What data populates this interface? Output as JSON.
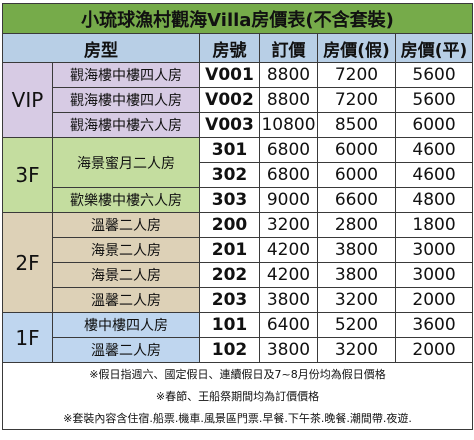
{
  "title": "小琉球漁村觀海Villa房價表(不含套裝)",
  "headers": {
    "room_type": "房型",
    "room_no": "房號",
    "list_price": "訂價",
    "holiday_price": "房價(假)",
    "weekday_price": "房價(平)"
  },
  "groups": [
    {
      "label": "VIP",
      "rows": [
        {
          "room": "觀海樓中樓四人房",
          "code": "V001",
          "list": "8800",
          "holiday": "7200",
          "weekday": "5600"
        },
        {
          "room": "觀海樓中樓四人房",
          "code": "V002",
          "list": "8800",
          "holiday": "7200",
          "weekday": "5600"
        },
        {
          "room": "觀海樓中樓六人房",
          "code": "V003",
          "list": "10800",
          "holiday": "8500",
          "weekday": "6000"
        }
      ]
    },
    {
      "label": "3F",
      "rows": [
        {
          "room": "海景蜜月二人房",
          "code": "301",
          "list": "6800",
          "holiday": "6000",
          "weekday": "4600"
        },
        {
          "room": "",
          "code": "302",
          "list": "6800",
          "holiday": "6000",
          "weekday": "4600"
        },
        {
          "room": "歡樂樓中樓六人房",
          "code": "303",
          "list": "9000",
          "holiday": "6600",
          "weekday": "4800"
        }
      ]
    },
    {
      "label": "2F",
      "rows": [
        {
          "room": "溫馨二人房",
          "code": "200",
          "list": "3200",
          "holiday": "2800",
          "weekday": "1800"
        },
        {
          "room": "海景二人房",
          "code": "201",
          "list": "4200",
          "holiday": "3800",
          "weekday": "3000"
        },
        {
          "room": "海景二人房",
          "code": "202",
          "list": "4200",
          "holiday": "3800",
          "weekday": "3000"
        },
        {
          "room": "溫馨二人房",
          "code": "203",
          "list": "3800",
          "holiday": "3200",
          "weekday": "2000"
        }
      ]
    },
    {
      "label": "1F",
      "rows": [
        {
          "room": "樓中樓四人房",
          "code": "101",
          "list": "6400",
          "holiday": "5200",
          "weekday": "3600"
        },
        {
          "room": "溫馨二人房",
          "code": "102",
          "list": "3800",
          "holiday": "3200",
          "weekday": "2000"
        }
      ]
    }
  ],
  "notes": [
    "※假日指週六、國定假日、連續假日及7~8月份均為假日價格",
    "※春節、王船祭期間均為訂價價格",
    "※套裝內容含住宿.船票.機車.風景區門票.早餐.下午茶.晚餐.潮間帶.夜遊."
  ]
}
